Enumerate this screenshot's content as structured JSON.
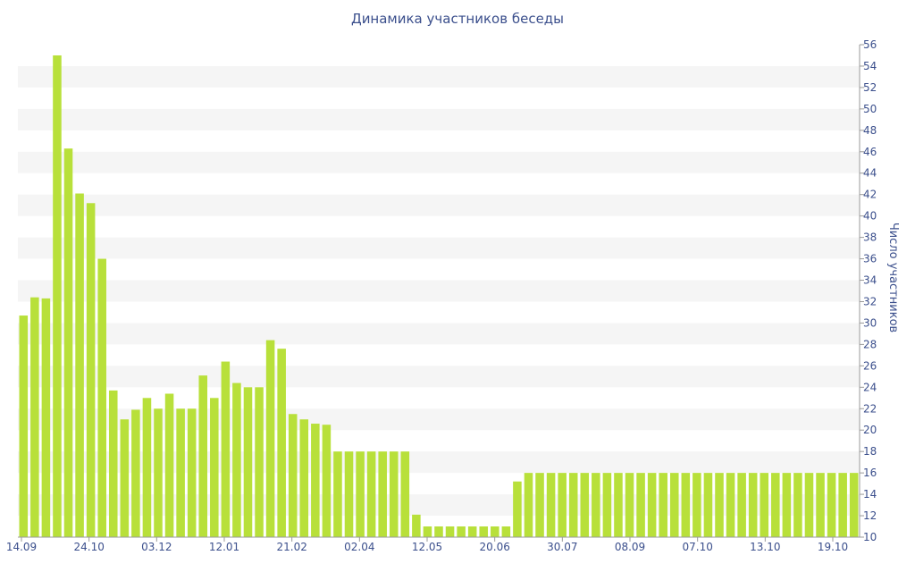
{
  "chart_data": {
    "type": "bar",
    "title": "Динамика участников беседы",
    "ylabel": "Число участников",
    "xlabel": "",
    "ylim": [
      10,
      56
    ],
    "ytick_step": 2,
    "grid": "horizontal-bands",
    "x_tick_labels": [
      "14.09",
      "24.10",
      "03.12",
      "12.01",
      "21.02",
      "02.04",
      "12.05",
      "20.06",
      "30.07",
      "08.09",
      "07.10",
      "13.10",
      "19.10"
    ],
    "colors": {
      "bar": "#b8e03a",
      "band": "#f5f5f5",
      "text": "#3b4f8c",
      "axis": "#9a9a9a"
    },
    "values": [
      30.7,
      32.4,
      32.3,
      55,
      46.3,
      42.1,
      41.2,
      36,
      23.7,
      21,
      21.9,
      23,
      22,
      23.4,
      22,
      22,
      25.1,
      23,
      26.4,
      24.4,
      24,
      24,
      28.4,
      27.6,
      21.5,
      21,
      20.6,
      20.5,
      18,
      18,
      18,
      18,
      18,
      18,
      18,
      12.1,
      11,
      11,
      11,
      11,
      11,
      11,
      11,
      11,
      15.2,
      16,
      16,
      16,
      16,
      16,
      16,
      16,
      16,
      16,
      16,
      16,
      16,
      16,
      16,
      16,
      16,
      16,
      16,
      16,
      16,
      16,
      16,
      16,
      16,
      16,
      16,
      16,
      16,
      16,
      16
    ]
  }
}
